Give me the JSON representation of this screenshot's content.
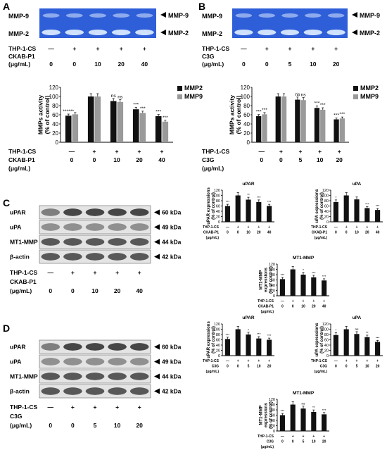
{
  "panels": [
    {
      "letter": "A"
    },
    {
      "letter": "B"
    },
    {
      "letter": "C"
    },
    {
      "letter": "D"
    }
  ],
  "colors": {
    "zymo_bg": "#2f5fd8",
    "zymo_band": "#d8e8ff",
    "blot_bg": "#e4e4e4",
    "blot_band": "#2a2a2a",
    "mmp2": "#111111",
    "mmp9": "#9a9a9a",
    "bar": "#111111"
  },
  "zymo_A": {
    "labels": [
      "MMP-9",
      "MMP-2"
    ],
    "arrows": [
      "MMP-9",
      "MMP-2"
    ],
    "treat_rows": [
      {
        "label": "THP-1-CS",
        "cells": [
          "—",
          "+",
          "+",
          "+",
          "+"
        ]
      },
      {
        "label": "CKAB-P1",
        "cells": [
          "",
          "",
          "",
          "",
          ""
        ]
      },
      {
        "label": "(μg/mL)",
        "cells": [
          "0",
          "0",
          "10",
          "20",
          "40"
        ]
      }
    ]
  },
  "zymo_B": {
    "labels": [
      "MMP-9",
      "MMP-2"
    ],
    "arrows": [
      "MMP-9",
      "MMP-2"
    ],
    "treat_rows": [
      {
        "label": "THP-1-CS",
        "cells": [
          "—",
          "+",
          "+",
          "+",
          "+"
        ]
      },
      {
        "label": "C3G",
        "cells": [
          "",
          "",
          "",
          "",
          ""
        ]
      },
      {
        "label": "(μg/mL)",
        "cells": [
          "0",
          "0",
          "5",
          "10",
          "20"
        ]
      }
    ]
  },
  "blot_C": {
    "labels": [
      "uPAR",
      "uPA",
      "MT1-MMP",
      "β-actin"
    ],
    "kda": [
      "60 kDa",
      "49 kDa",
      "44 kDa",
      "42 kDa"
    ],
    "treat_rows": [
      {
        "label": "THP-1-CS",
        "cells": [
          "—",
          "+",
          "+",
          "+",
          "+"
        ]
      },
      {
        "label": "CKAB-P1",
        "cells": [
          "",
          "",
          "",
          "",
          ""
        ]
      },
      {
        "label": "(μg/mL)",
        "cells": [
          "0",
          "0",
          "10",
          "20",
          "40"
        ]
      }
    ]
  },
  "blot_D": {
    "labels": [
      "uPAR",
      "uPA",
      "MT1-MMP",
      "β-actin"
    ],
    "kda": [
      "60 kDa",
      "49 kDa",
      "44 kDa",
      "42 kDa"
    ],
    "treat_rows": [
      {
        "label": "THP-1-CS",
        "cells": [
          "—",
          "+",
          "+",
          "+",
          "+"
        ]
      },
      {
        "label": "C3G",
        "cells": [
          "",
          "",
          "",
          "",
          ""
        ]
      },
      {
        "label": "(μg/mL)",
        "cells": [
          "0",
          "0",
          "5",
          "10",
          "20"
        ]
      }
    ]
  },
  "chart_data": [
    {
      "id": "A",
      "type": "bar",
      "ylabel": "MMPs activity\n(% of control)",
      "ylim": [
        0,
        120
      ],
      "yticks": [
        0,
        20,
        40,
        60,
        80,
        100,
        120
      ],
      "series": [
        {
          "name": "MMP2",
          "values": [
            58,
            100,
            90,
            72,
            57
          ]
        },
        {
          "name": "MMP9",
          "values": [
            61,
            100,
            88,
            64,
            45
          ]
        }
      ],
      "sig": [
        [
          "******",
          ""
        ],
        [
          "",
          ""
        ],
        [
          "ns",
          "ns"
        ],
        [
          "***",
          "***"
        ],
        [
          "***",
          "***"
        ]
      ],
      "treat": {
        "rows": [
          {
            "label": "THP-1-CS",
            "cells": [
              "—",
              "+",
              "+",
              "+",
              "+"
            ]
          },
          {
            "label": "CKAB-P1",
            "cells": [
              "0",
              "0",
              "10",
              "20",
              "40"
            ]
          },
          {
            "label": "(μg/mL)",
            "cells": []
          }
        ]
      }
    },
    {
      "id": "B",
      "type": "bar",
      "ylabel": "MMPs activity\n(% of control)",
      "ylim": [
        0,
        120
      ],
      "yticks": [
        0,
        20,
        40,
        60,
        80,
        100,
        120
      ],
      "series": [
        {
          "name": "MMP2",
          "values": [
            57,
            100,
            93,
            75,
            50
          ]
        },
        {
          "name": "MMP9",
          "values": [
            61,
            100,
            92,
            71,
            52
          ]
        }
      ],
      "sig": [
        [
          "***",
          "***"
        ],
        [
          "",
          ""
        ],
        [
          "ns",
          "ns"
        ],
        [
          "***",
          "***"
        ],
        [
          "***",
          "***"
        ]
      ],
      "treat": {
        "rows": [
          {
            "label": "THP-1-CS",
            "cells": [
              "—",
              "+",
              "+",
              "+",
              "+"
            ]
          },
          {
            "label": "C3G",
            "cells": [
              "0",
              "0",
              "5",
              "10",
              "20"
            ]
          },
          {
            "label": "(μg/mL)",
            "cells": []
          }
        ]
      }
    },
    {
      "id": "C-uPAR",
      "type": "bar",
      "title": "uPAR",
      "ylabel": "uPAR expressions\n(% of control)",
      "ylim": [
        0,
        120
      ],
      "yticks": [
        0,
        20,
        40,
        60,
        80,
        100,
        120
      ],
      "series": [
        {
          "values": [
            60,
            100,
            84,
            75,
            60
          ]
        }
      ],
      "sig": [
        "***",
        "",
        "**",
        "***",
        "***"
      ],
      "treat": {
        "rows": [
          {
            "label": "THP-1-CS",
            "cells": [
              "—",
              "+",
              "+",
              "+",
              "+"
            ]
          },
          {
            "label": "CKAB-P1",
            "cells": [
              "0",
              "0",
              "10",
              "20",
              "40"
            ]
          },
          {
            "label": "(μg/mL)",
            "cells": []
          }
        ]
      }
    },
    {
      "id": "C-uPA",
      "type": "bar",
      "title": "uPA",
      "ylabel": "uPA expressions\n(% of control)",
      "ylim": [
        0,
        120
      ],
      "yticks": [
        0,
        20,
        40,
        60,
        80,
        100,
        120
      ],
      "series": [
        {
          "values": [
            75,
            100,
            85,
            52,
            45
          ]
        }
      ],
      "sig": [
        "*",
        "",
        "",
        "***",
        "***"
      ],
      "treat": {
        "rows": [
          {
            "label": "THP-1-CS",
            "cells": [
              "—",
              "+",
              "+",
              "+",
              "+"
            ]
          },
          {
            "label": "CKAB-P1",
            "cells": [
              "0",
              "0",
              "10",
              "20",
              "40"
            ]
          },
          {
            "label": "(μg/mL)",
            "cells": []
          }
        ]
      }
    },
    {
      "id": "C-MT1",
      "type": "bar",
      "title": "MT1-MMP",
      "ylabel": "MT1-MMP\nexpressions\n(% of control)",
      "ylim": [
        0,
        120
      ],
      "yticks": [
        0,
        20,
        40,
        60,
        80,
        100,
        120
      ],
      "series": [
        {
          "values": [
            63,
            100,
            80,
            70,
            58
          ]
        }
      ],
      "sig": [
        "***",
        "",
        "*",
        "***",
        "***"
      ],
      "treat": {
        "rows": [
          {
            "label": "THP-1-CS",
            "cells": [
              "—",
              "+",
              "+",
              "+",
              "+"
            ]
          },
          {
            "label": "CKAB-P1",
            "cells": [
              "0",
              "0",
              "10",
              "20",
              "40"
            ]
          },
          {
            "label": "(μg/mL)",
            "cells": []
          }
        ]
      }
    },
    {
      "id": "D-uPAR",
      "type": "bar",
      "title": "uPAR",
      "ylabel": "uPAR expressions\n(% of control)",
      "ylim": [
        0,
        120
      ],
      "yticks": [
        0,
        20,
        40,
        60,
        80,
        100,
        120
      ],
      "series": [
        {
          "values": [
            63,
            100,
            80,
            65,
            60
          ]
        }
      ],
      "sig": [
        "***",
        "",
        "*",
        "***",
        "***"
      ],
      "treat": {
        "rows": [
          {
            "label": "THP-1-CS",
            "cells": [
              "—",
              "+",
              "+",
              "+",
              "+"
            ]
          },
          {
            "label": "C3G",
            "cells": [
              "0",
              "0",
              "5",
              "10",
              "20"
            ]
          },
          {
            "label": "(μg/mL)",
            "cells": []
          }
        ]
      }
    },
    {
      "id": "D-uPA",
      "type": "bar",
      "title": "uPA",
      "ylabel": "uPA expressions\n(% of control)",
      "ylim": [
        0,
        120
      ],
      "yticks": [
        0,
        20,
        40,
        60,
        80,
        100,
        120
      ],
      "series": [
        {
          "values": [
            78,
            100,
            82,
            70,
            52
          ]
        }
      ],
      "sig": [
        "*",
        "",
        "ns",
        "**",
        "***"
      ],
      "treat": {
        "rows": [
          {
            "label": "THP-1-CS",
            "cells": [
              "—",
              "+",
              "+",
              "+",
              "+"
            ]
          },
          {
            "label": "C3G",
            "cells": [
              "0",
              "0",
              "5",
              "10",
              "20"
            ]
          },
          {
            "label": "(μg/mL)",
            "cells": []
          }
        ]
      }
    },
    {
      "id": "D-MT1",
      "type": "bar",
      "title": "MT1-MMP",
      "ylabel": "MT1-MMP\nexpressions\n(% of control)",
      "ylim": [
        0,
        120
      ],
      "yticks": [
        0,
        20,
        40,
        60,
        80,
        100,
        120
      ],
      "series": [
        {
          "values": [
            60,
            100,
            85,
            72,
            63
          ]
        }
      ],
      "sig": [
        "***",
        "",
        "ns",
        "**",
        "***"
      ],
      "treat": {
        "rows": [
          {
            "label": "THP-1-CS",
            "cells": [
              "—",
              "+",
              "+",
              "+",
              "+"
            ]
          },
          {
            "label": "C3G",
            "cells": [
              "0",
              "0",
              "5",
              "10",
              "20"
            ]
          },
          {
            "label": "(μg/mL)",
            "cells": []
          }
        ]
      }
    }
  ]
}
